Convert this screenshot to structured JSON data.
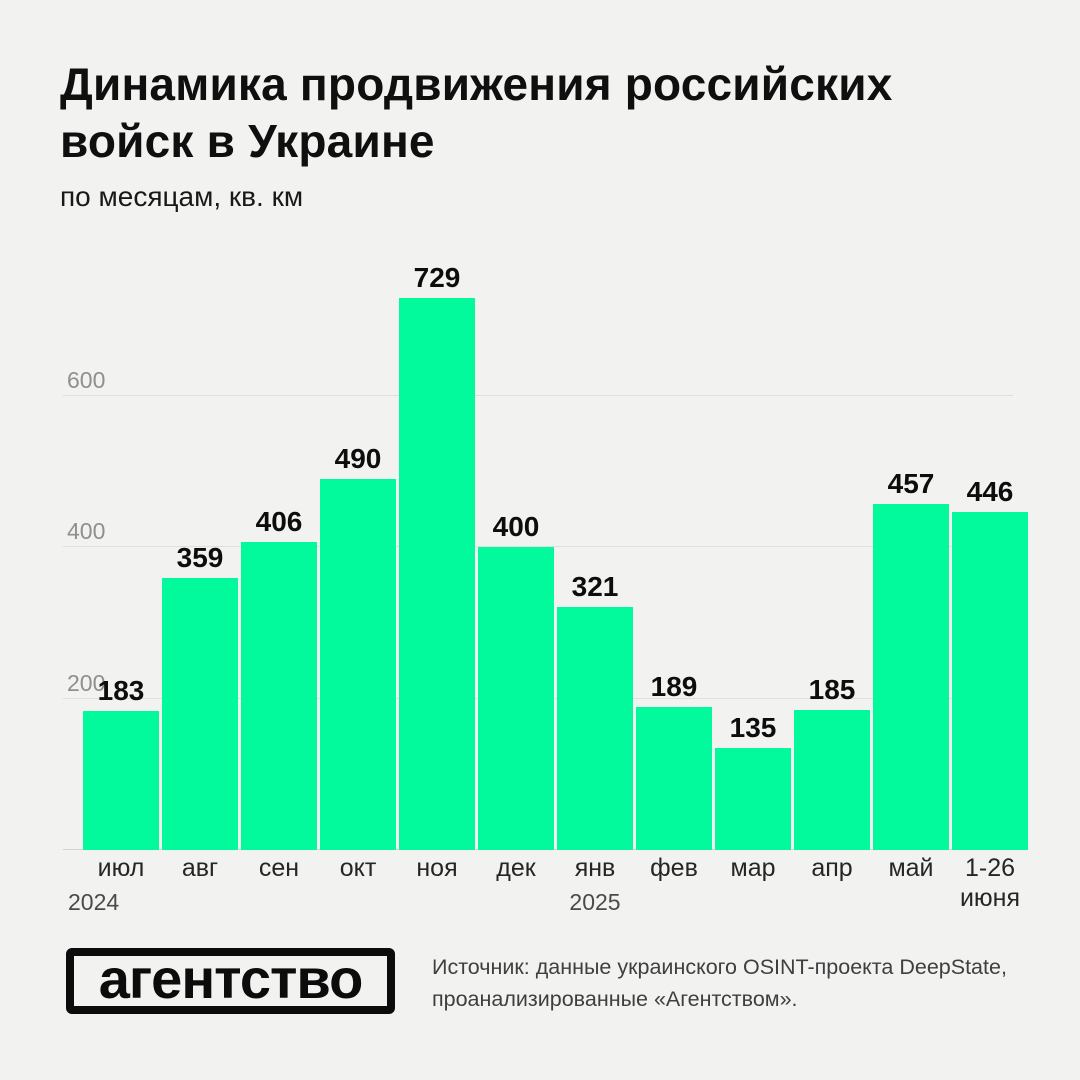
{
  "page": {
    "background_color": "#f2f2f1"
  },
  "header": {
    "title_line1": "Динамика продвижения российских",
    "title_line2": "войск в Украине",
    "subtitle": "по месяцам, кв. км"
  },
  "chart_data": {
    "type": "bar",
    "title": "Динамика продвижения российских войск в Украине",
    "subtitle": "по месяцам, кв. км",
    "categories": [
      "июл",
      "авг",
      "сен",
      "окт",
      "ноя",
      "дек",
      "янв",
      "фев",
      "мар",
      "апр",
      "май",
      "1-26 июня"
    ],
    "values": [
      183,
      359,
      406,
      490,
      729,
      400,
      321,
      189,
      135,
      185,
      457,
      446
    ],
    "year_markers": [
      {
        "label": "2024",
        "bar_index": 0
      },
      {
        "label": "2025",
        "bar_index": 6
      }
    ],
    "yticks": [
      200,
      400,
      600
    ],
    "ylim": [
      0,
      760
    ],
    "grid": true,
    "legend": "none",
    "value_labels": true,
    "bar_color": "#02f99c",
    "gridline_color": "#dfdfdd",
    "tick_label_color": "#8f8f8f"
  },
  "footer": {
    "logo_text": "агентство",
    "source_line1": "Источник: данные украинского OSINT-проекта DeepState,",
    "source_line2": "проанализированные «Агентством»."
  }
}
